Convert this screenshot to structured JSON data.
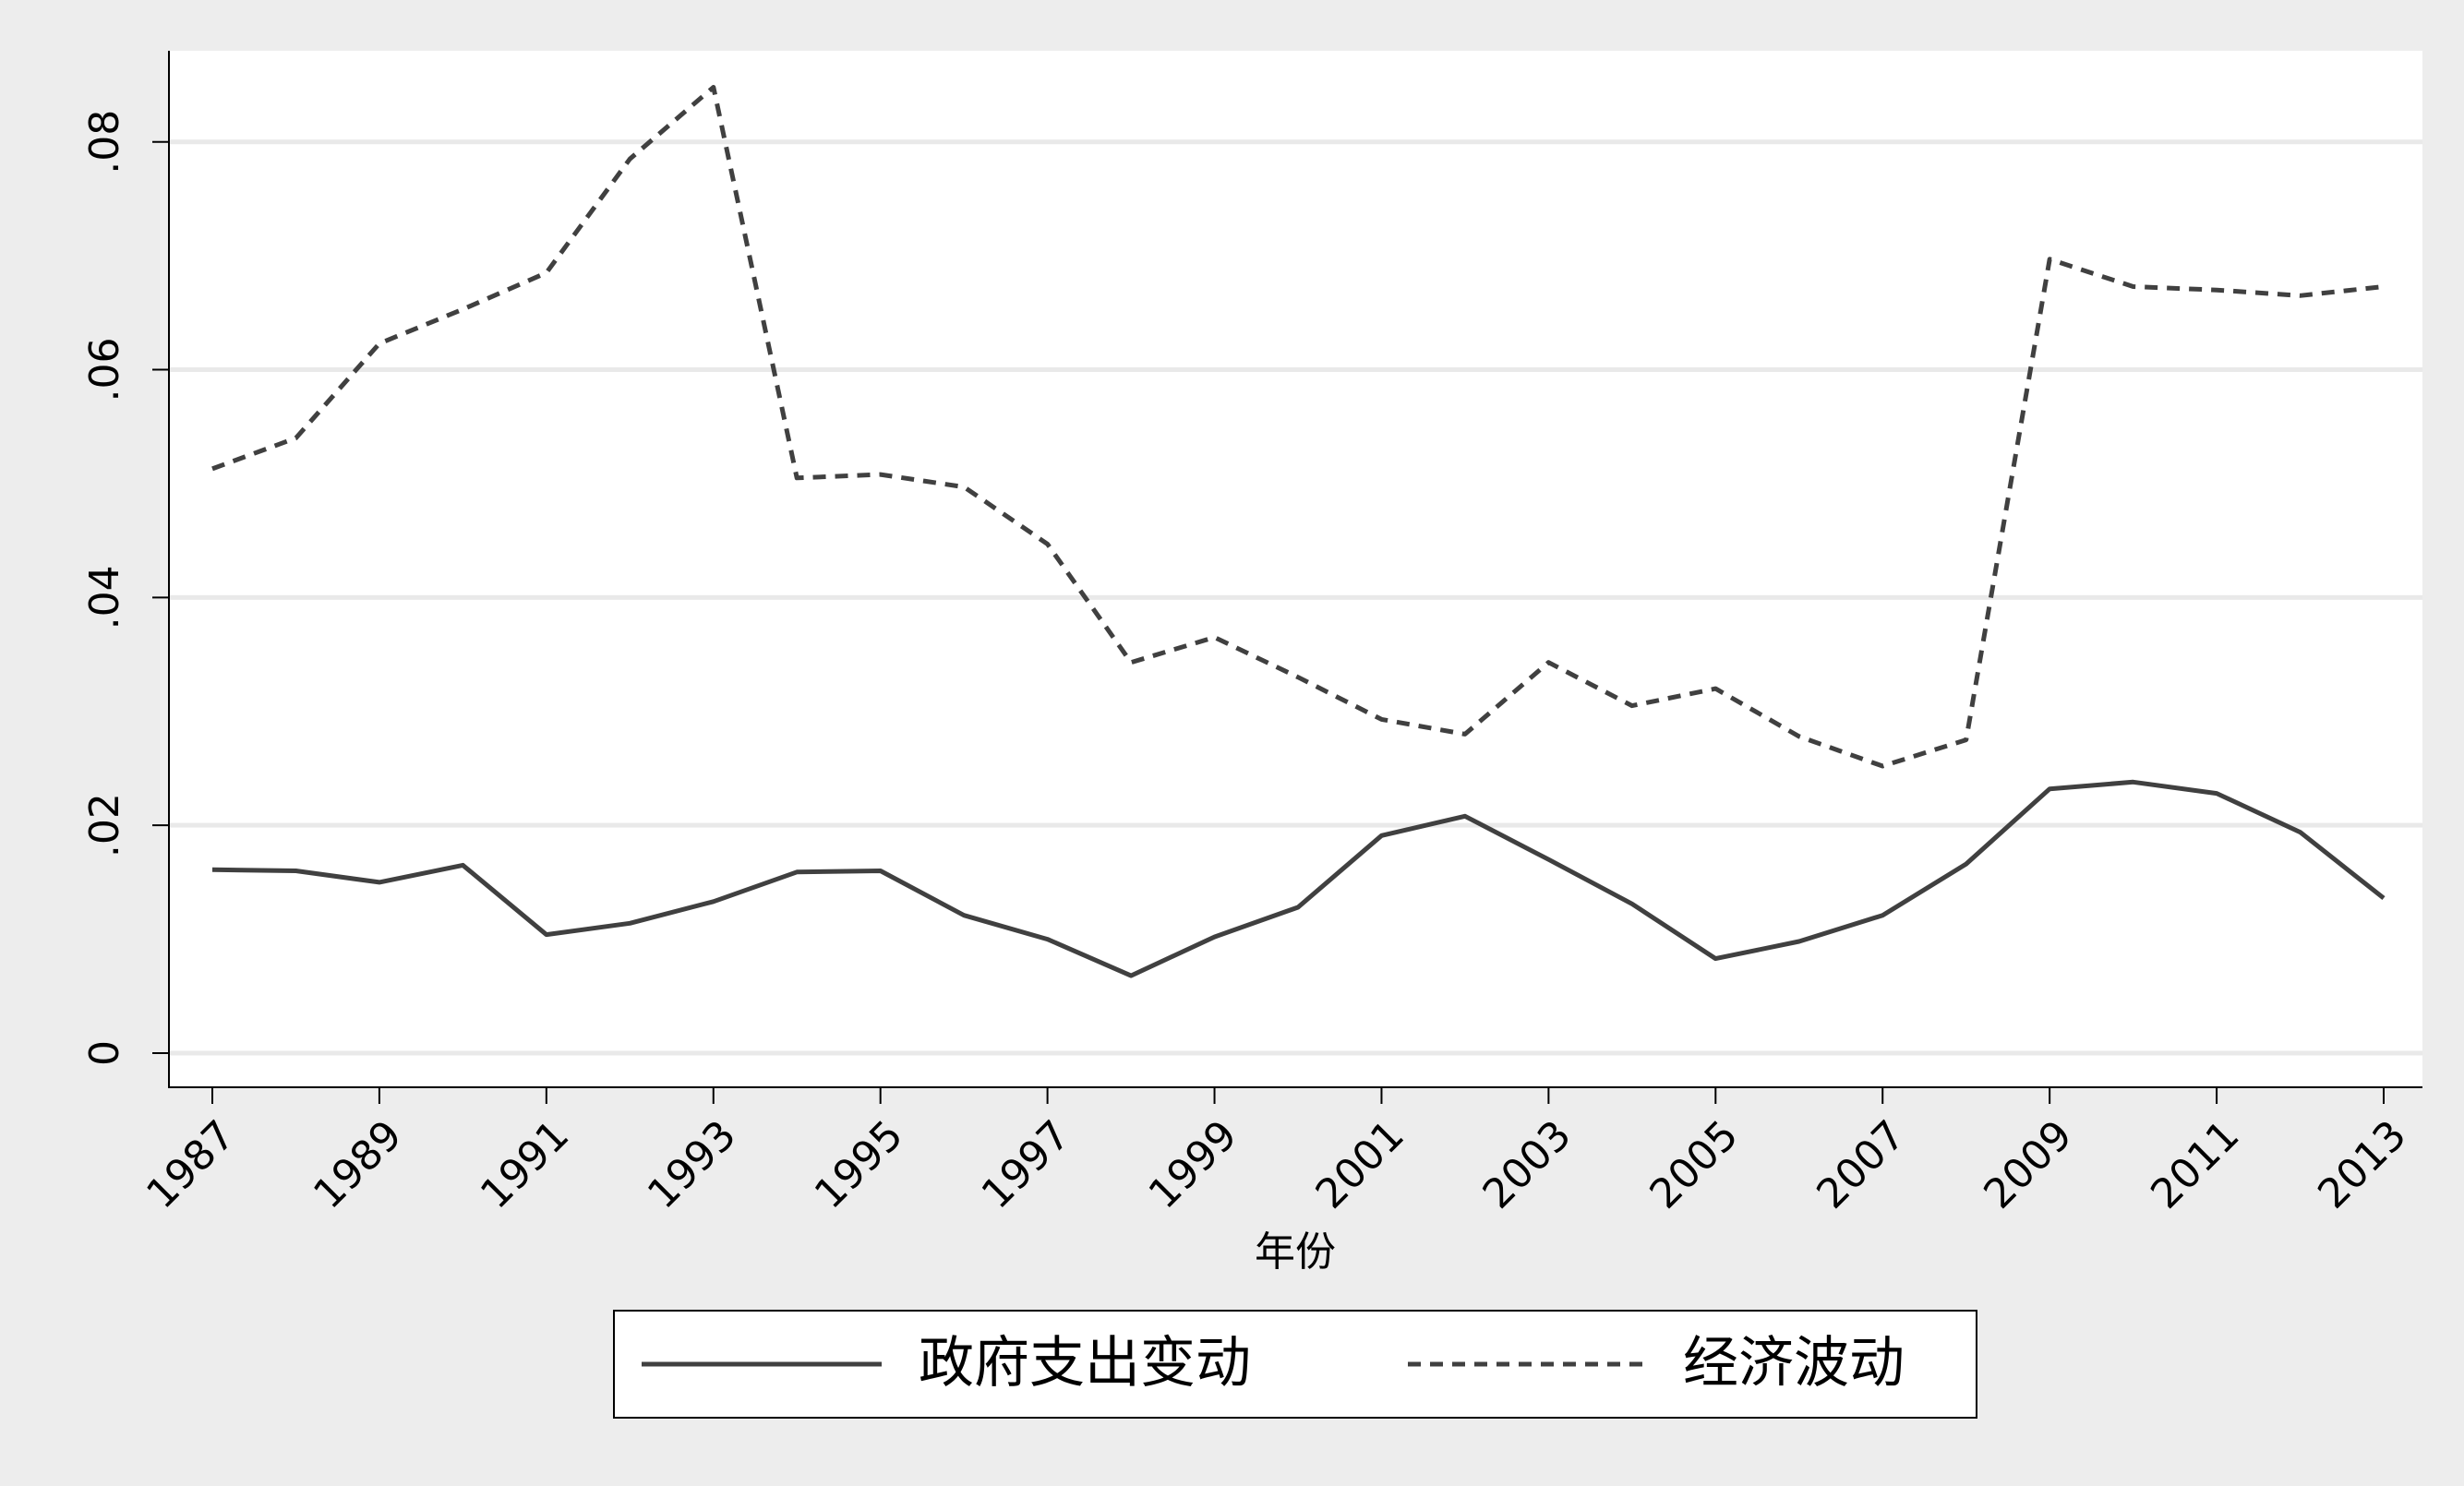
{
  "chart_data": {
    "type": "line",
    "title": "",
    "xlabel": "年份",
    "ylabel": "",
    "x": [
      1987,
      1988,
      1989,
      1990,
      1991,
      1992,
      1993,
      1994,
      1995,
      1996,
      1997,
      1998,
      1999,
      2000,
      2001,
      2002,
      2003,
      2004,
      2005,
      2006,
      2007,
      2008,
      2009,
      2010,
      2011,
      2012,
      2013
    ],
    "xticks": [
      "1987",
      "1989",
      "1991",
      "1993",
      "1995",
      "1997",
      "1999",
      "2001",
      "2003",
      "2005",
      "2007",
      "2009",
      "2011",
      "2013"
    ],
    "xlim": [
      1987,
      2013
    ],
    "yticks": [
      {
        "value": 0,
        "label": "0"
      },
      {
        "value": 0.02,
        "label": ".02"
      },
      {
        "value": 0.04,
        "label": ".04"
      },
      {
        "value": 0.06,
        "label": ".06"
      },
      {
        "value": 0.08,
        "label": ".08"
      }
    ],
    "ylim": [
      -0.003,
      0.088
    ],
    "grid": true,
    "legend_position": "bottom",
    "series": [
      {
        "name": "政府支出变动",
        "style": "solid",
        "color": "#404040",
        "values": [
          0.0161,
          0.016,
          0.015,
          0.0165,
          0.0104,
          0.0114,
          0.0133,
          0.0159,
          0.016,
          0.0121,
          0.01,
          0.0068,
          0.0102,
          0.0128,
          0.0191,
          0.0208,
          0.017,
          0.0131,
          0.0083,
          0.0098,
          0.0121,
          0.0166,
          0.0232,
          0.0238,
          0.0228,
          0.0194,
          0.0136
        ]
      },
      {
        "name": "经济波动",
        "style": "dashed",
        "color": "#404040",
        "values": [
          0.0513,
          0.054,
          0.0623,
          0.0653,
          0.0685,
          0.0785,
          0.0848,
          0.0505,
          0.0508,
          0.0497,
          0.0447,
          0.0343,
          0.0365,
          0.033,
          0.0293,
          0.028,
          0.0343,
          0.0305,
          0.032,
          0.0278,
          0.0252,
          0.0275,
          0.0697,
          0.0673,
          0.067,
          0.0665,
          0.0673
        ]
      }
    ]
  }
}
